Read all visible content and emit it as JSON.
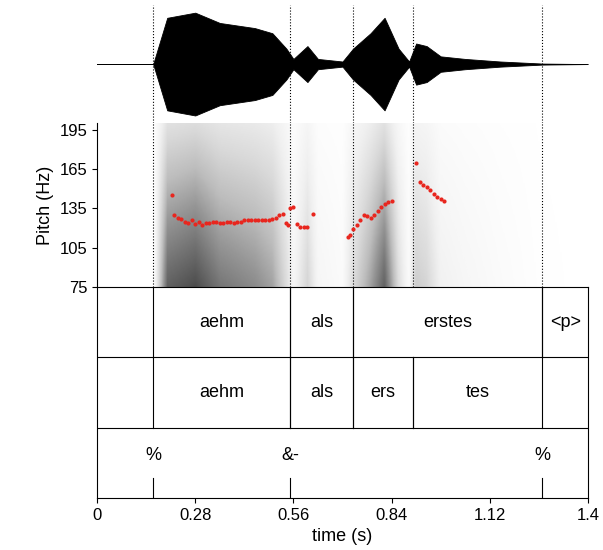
{
  "chart_data": {
    "type": "scatter",
    "x_label": "time (s)",
    "y_label": "Pitch (Hz)",
    "xlim": [
      0,
      1.4
    ],
    "xticks": [
      0,
      0.28,
      0.56,
      0.84,
      1.12,
      1.4
    ],
    "ylim": [
      75,
      200
    ],
    "yticks": [
      75,
      105,
      135,
      165,
      195
    ],
    "color": "#e8261e",
    "marker": "o",
    "x": [
      0.215,
      0.22,
      0.23,
      0.24,
      0.25,
      0.26,
      0.27,
      0.28,
      0.29,
      0.3,
      0.31,
      0.32,
      0.33,
      0.34,
      0.35,
      0.36,
      0.37,
      0.38,
      0.39,
      0.4,
      0.41,
      0.42,
      0.43,
      0.44,
      0.45,
      0.46,
      0.47,
      0.48,
      0.49,
      0.5,
      0.51,
      0.52,
      0.53,
      0.54,
      0.545,
      0.55,
      0.56,
      0.57,
      0.58,
      0.59,
      0.6,
      0.615,
      0.715,
      0.72,
      0.73,
      0.74,
      0.75,
      0.76,
      0.77,
      0.78,
      0.79,
      0.8,
      0.81,
      0.82,
      0.83,
      0.84,
      0.91,
      0.92,
      0.93,
      0.94,
      0.95,
      0.96,
      0.97,
      0.98,
      0.99
    ],
    "values": [
      145,
      130,
      128,
      127,
      125,
      124,
      126,
      123,
      125,
      122,
      124,
      124,
      125,
      125,
      124,
      124,
      125,
      125,
      124,
      125,
      125,
      126,
      126,
      126,
      126,
      126,
      126,
      126,
      126,
      127,
      128,
      130,
      131,
      124,
      122,
      135,
      136,
      123,
      121,
      121,
      121,
      131,
      113,
      115,
      119,
      122,
      126,
      130,
      129,
      128,
      130,
      133,
      136,
      138,
      140,
      141,
      170,
      155,
      153,
      151,
      149,
      146,
      144,
      142,
      141
    ],
    "waveform": {
      "x": [
        0,
        0.16,
        0.2,
        0.28,
        0.35,
        0.45,
        0.5,
        0.54,
        0.56,
        0.6,
        0.63,
        0.7,
        0.73,
        0.78,
        0.82,
        0.86,
        0.89,
        0.91,
        0.94,
        0.98,
        1.05,
        1.15,
        1.27,
        1.4
      ],
      "amplitude": [
        0,
        0,
        0.9,
        1.0,
        0.8,
        0.7,
        0.6,
        0.3,
        0.1,
        0.35,
        0.1,
        0.05,
        0.3,
        0.6,
        0.9,
        0.3,
        0.05,
        0.4,
        0.35,
        0.15,
        0.1,
        0.05,
        0.01,
        0
      ]
    },
    "tiers": [
      {
        "type": "interval",
        "intervals": [
          {
            "start": 0.16,
            "end": 0.55,
            "label": "aehm"
          },
          {
            "start": 0.55,
            "end": 0.73,
            "label": "als"
          },
          {
            "start": 0.73,
            "end": 1.27,
            "label": "erstes"
          },
          {
            "start": 1.27,
            "end": 1.4,
            "label": "<p>"
          }
        ]
      },
      {
        "type": "interval",
        "intervals": [
          {
            "start": 0.16,
            "end": 0.55,
            "label": "aehm"
          },
          {
            "start": 0.55,
            "end": 0.73,
            "label": "als"
          },
          {
            "start": 0.73,
            "end": 0.9,
            "label": "ers"
          },
          {
            "start": 0.9,
            "end": 1.27,
            "label": "tes"
          }
        ]
      },
      {
        "type": "point",
        "points": [
          {
            "time": 0.16,
            "label": "%"
          },
          {
            "time": 0.55,
            "label": "&-"
          },
          {
            "time": 1.27,
            "label": "%"
          }
        ]
      }
    ]
  }
}
